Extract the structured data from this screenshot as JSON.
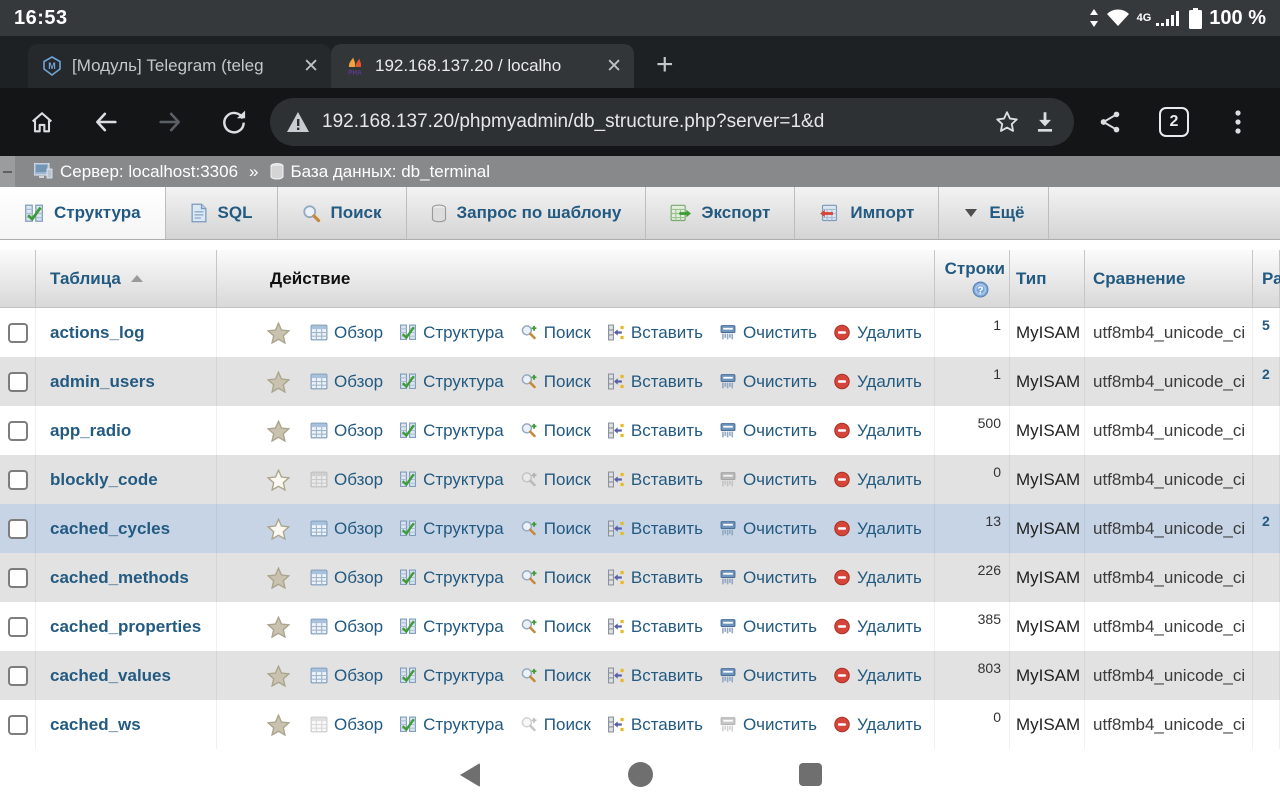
{
  "status_bar": {
    "time": "16:53",
    "network": "4G",
    "battery": "100 %"
  },
  "browser": {
    "tabs": [
      {
        "title": "[Модуль] Telegram (teleg",
        "favicon": "modul-icon"
      },
      {
        "title": "192.168.137.20 / localho",
        "favicon": "phpmyadmin-icon"
      }
    ],
    "url": "192.168.137.20/phpmyadmin/db_structure.php?server=1&d",
    "tab_count": "2"
  },
  "breadcrumb": {
    "server": "Сервер: localhost:3306",
    "separator": "»",
    "database": "База данных: db_terminal"
  },
  "pma_tabs": [
    {
      "label": "Структура",
      "icon": "structure",
      "active": true
    },
    {
      "label": "SQL",
      "icon": "sql",
      "active": false
    },
    {
      "label": "Поиск",
      "icon": "search",
      "active": false
    },
    {
      "label": "Запрос по шаблону",
      "icon": "qbe",
      "active": false
    },
    {
      "label": "Экспорт",
      "icon": "export",
      "active": false
    },
    {
      "label": "Импорт",
      "icon": "import",
      "active": false
    },
    {
      "label": "Ещё",
      "icon": "more",
      "active": false
    }
  ],
  "table": {
    "headers": {
      "table": "Таблица",
      "action": "Действие",
      "rows": "Строки",
      "type": "Тип",
      "collation": "Сравнение",
      "size": "Ра"
    },
    "action_labels": [
      "Обзор",
      "Структура",
      "Поиск",
      "Вставить",
      "Очистить",
      "Удалить"
    ],
    "rows": [
      {
        "name": "actions_log",
        "rows": "1",
        "type": "MyISAM",
        "collation": "utf8mb4_unicode_ci",
        "size": "5",
        "star": "solid",
        "highlighted": false,
        "dimmed": false
      },
      {
        "name": "admin_users",
        "rows": "1",
        "type": "MyISAM",
        "collation": "utf8mb4_unicode_ci",
        "size": "2",
        "star": "solid",
        "highlighted": false,
        "dimmed": false
      },
      {
        "name": "app_radio",
        "rows": "500",
        "type": "MyISAM",
        "collation": "utf8mb4_unicode_ci",
        "size": "",
        "star": "solid",
        "highlighted": false,
        "dimmed": false
      },
      {
        "name": "blockly_code",
        "rows": "0",
        "type": "MyISAM",
        "collation": "utf8mb4_unicode_ci",
        "size": "",
        "star": "outline",
        "highlighted": false,
        "dimmed": true
      },
      {
        "name": "cached_cycles",
        "rows": "13",
        "type": "MyISAM",
        "collation": "utf8mb4_unicode_ci",
        "size": "2",
        "star": "outline",
        "highlighted": true,
        "dimmed": false
      },
      {
        "name": "cached_methods",
        "rows": "226",
        "type": "MyISAM",
        "collation": "utf8mb4_unicode_ci",
        "size": "",
        "star": "solid",
        "highlighted": false,
        "dimmed": false
      },
      {
        "name": "cached_properties",
        "rows": "385",
        "type": "MyISAM",
        "collation": "utf8mb4_unicode_ci",
        "size": "",
        "star": "solid",
        "highlighted": false,
        "dimmed": false
      },
      {
        "name": "cached_values",
        "rows": "803",
        "type": "MyISAM",
        "collation": "utf8mb4_unicode_ci",
        "size": "",
        "star": "solid",
        "highlighted": false,
        "dimmed": false
      },
      {
        "name": "cached_ws",
        "rows": "0",
        "type": "MyISAM",
        "collation": "utf8mb4_unicode_ci",
        "size": "",
        "star": "solid",
        "highlighted": false,
        "dimmed": true
      }
    ]
  },
  "colors": {
    "link_blue": "#235a81",
    "row_alt": "#e2e2e2",
    "row_highlight": "#c6d4e6",
    "drop_red": "#d6453a"
  }
}
